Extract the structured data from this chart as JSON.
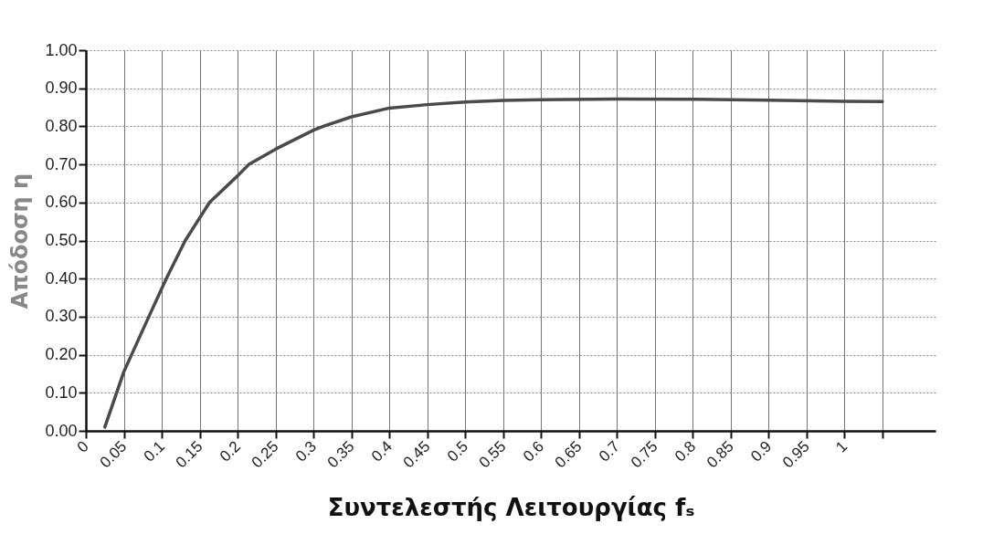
{
  "chart_data": {
    "type": "line",
    "xlabel": "Συντελεστής Λειτουργίας fₛ",
    "ylabel": "Απόδοση η",
    "x": [
      0.025,
      0.05,
      0.083,
      0.106,
      0.131,
      0.163,
      0.2,
      0.215,
      0.25,
      0.3,
      0.313,
      0.35,
      0.4,
      0.45,
      0.5,
      0.55,
      0.6,
      0.7,
      0.8,
      0.9,
      1.0,
      1.05
    ],
    "series": [
      {
        "color": "#4a4a4a",
        "values": [
          0.01,
          0.155,
          0.3,
          0.4,
          0.5,
          0.6,
          0.67,
          0.7,
          0.74,
          0.79,
          0.8,
          0.825,
          0.848,
          0.857,
          0.864,
          0.868,
          0.87,
          0.872,
          0.871,
          0.869,
          0.866,
          0.865
        ]
      }
    ],
    "xlim": [
      0,
      1.12
    ],
    "xticks": [
      0,
      0.05,
      0.1,
      0.15,
      0.2,
      0.25,
      0.3,
      0.35,
      0.4,
      0.45,
      0.5,
      0.55,
      0.6,
      0.65,
      0.7,
      0.75,
      0.8,
      0.85,
      0.9,
      0.95,
      1,
      {
        "value": 1.05,
        "label": null
      }
    ],
    "ylim": [
      0,
      1
    ],
    "yticks": [
      {
        "value": 0,
        "label": "0.00"
      },
      {
        "value": 0.1,
        "label": "0.10"
      },
      {
        "value": 0.2,
        "label": "0.20"
      },
      {
        "value": 0.3,
        "label": "0.30"
      },
      {
        "value": 0.4,
        "label": "0.40"
      },
      {
        "value": 0.5,
        "label": "0.50"
      },
      {
        "value": 0.6,
        "label": "0.60"
      },
      {
        "value": 0.7,
        "label": "0.70"
      },
      {
        "value": 0.8,
        "label": "0.80"
      },
      {
        "value": 0.9,
        "label": "0.90"
      },
      {
        "value": 1,
        "label": "1.00"
      }
    ],
    "grid": true,
    "marker": "none",
    "line_style": "solid"
  }
}
